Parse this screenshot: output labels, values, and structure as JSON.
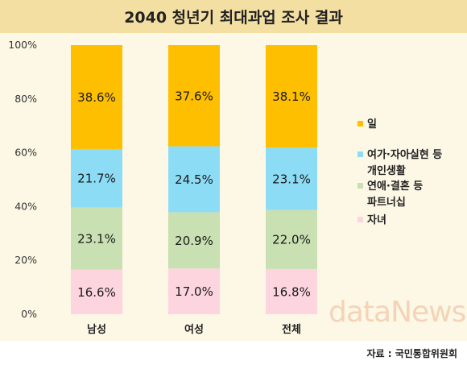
{
  "chart_data": {
    "type": "bar",
    "stacked": true,
    "title": "2040 청년기 최대과업 조사 결과",
    "categories": [
      "남성",
      "여성",
      "전체"
    ],
    "series": [
      {
        "name": "자녀",
        "values": [
          16.6,
          17.0,
          16.8
        ],
        "color": "#fdd5df"
      },
      {
        "name": "연애·결혼 등 파트너십",
        "values": [
          23.1,
          20.9,
          22.0
        ],
        "color": "#c8e0b2"
      },
      {
        "name": "여가·자아실현 등 개인생활",
        "values": [
          21.7,
          24.5,
          23.1
        ],
        "color": "#8ddcf5"
      },
      {
        "name": "일",
        "values": [
          38.6,
          37.6,
          38.1
        ],
        "color": "#fdbf00"
      }
    ],
    "y_ticks": [
      "0%",
      "20%",
      "40%",
      "60%",
      "80%",
      "100%"
    ],
    "ylim": [
      0,
      100
    ],
    "grid": false,
    "legend_position": "right"
  },
  "legend": {
    "entries": [
      {
        "series_index": 3,
        "lines": [
          "일"
        ]
      },
      {
        "series_index": 2,
        "lines": [
          "여가·자아실현 등",
          "개인생활"
        ]
      },
      {
        "series_index": 1,
        "lines": [
          "연애·결혼 등",
          "파트너십"
        ]
      },
      {
        "series_index": 0,
        "lines": [
          "자녀"
        ]
      }
    ]
  },
  "watermark": "dataNews",
  "source": "자료 : 국민통합위원회"
}
